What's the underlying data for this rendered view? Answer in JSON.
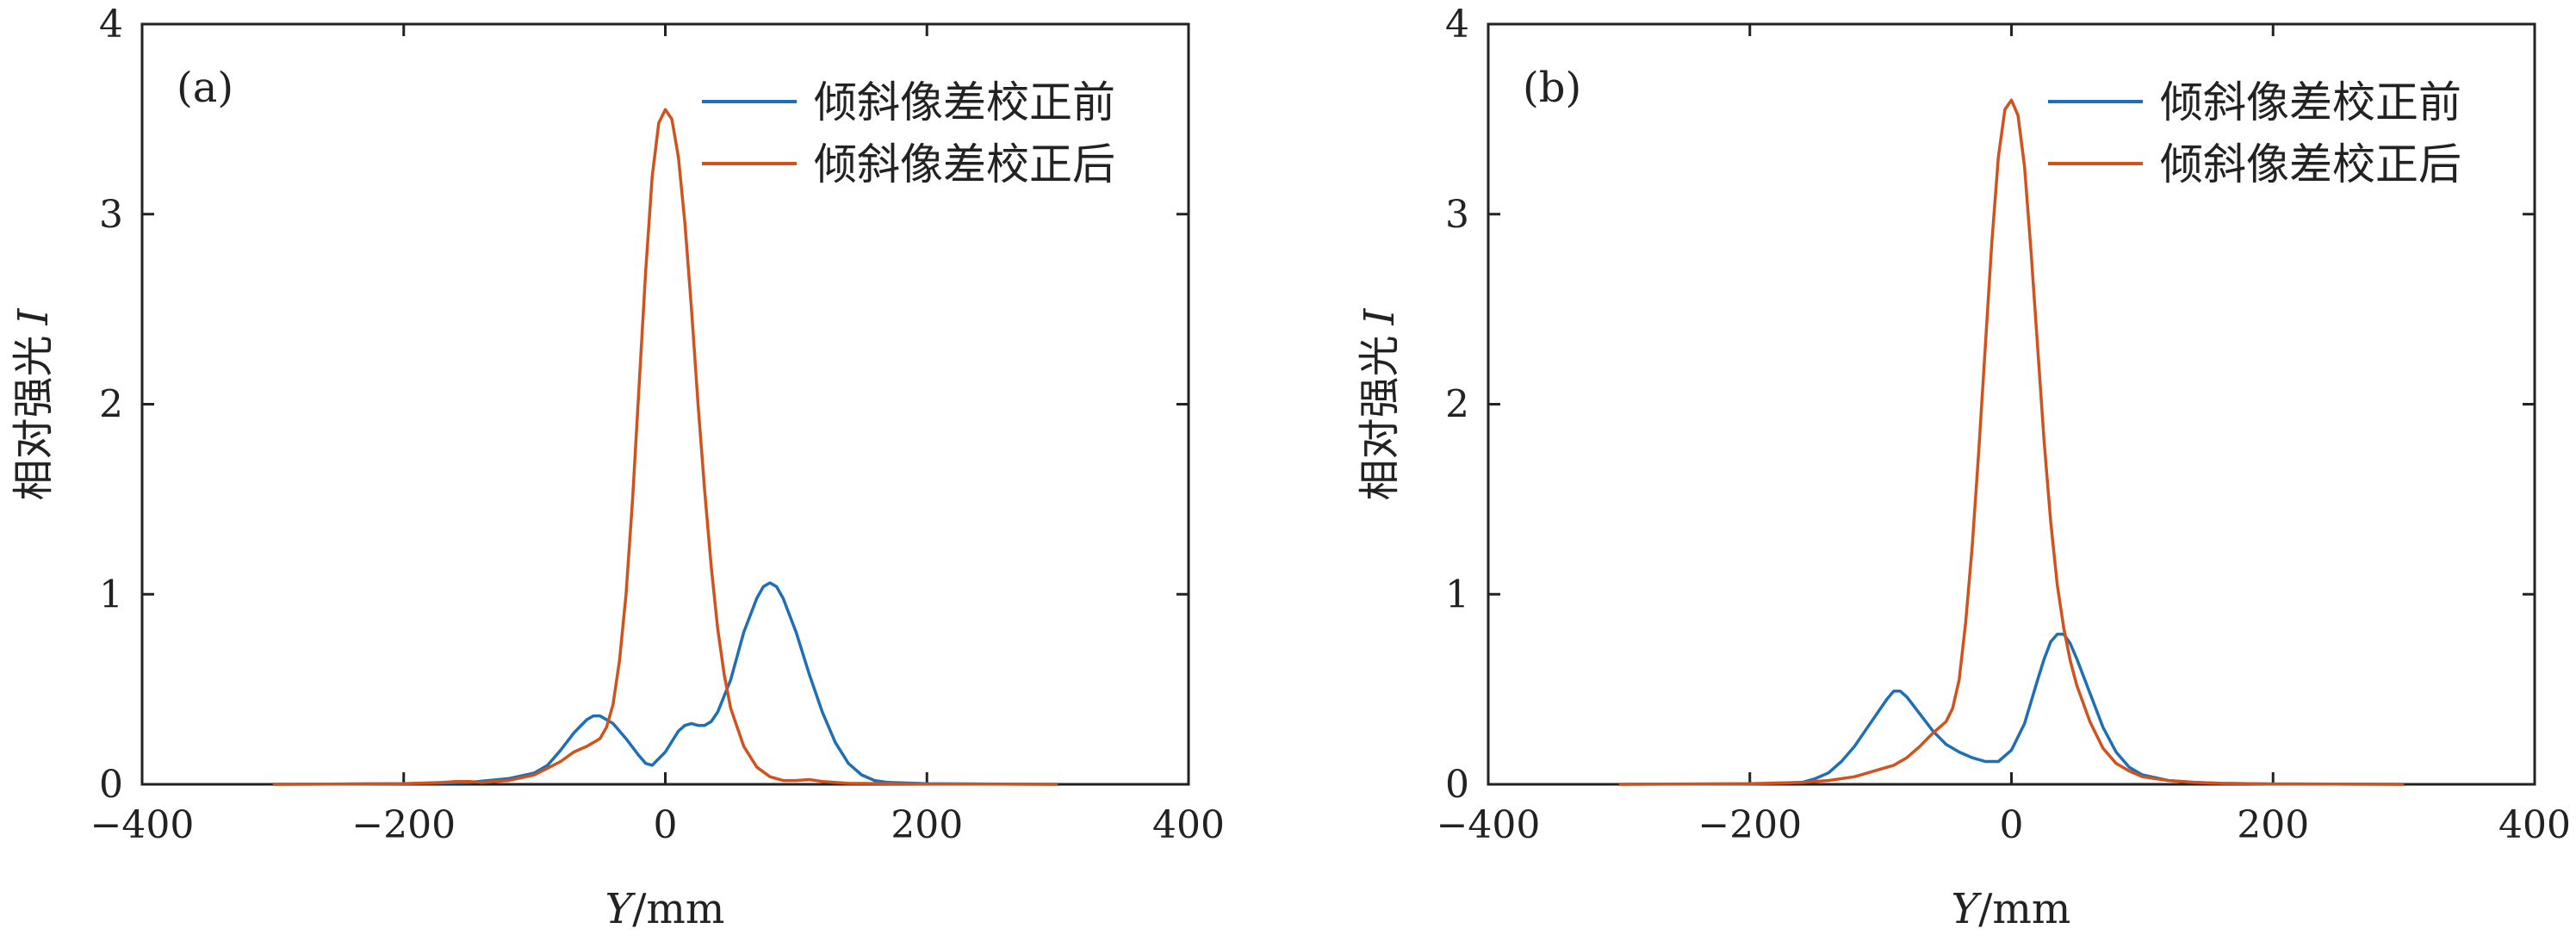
{
  "colors": {
    "before": "#1f6fb5",
    "after": "#d0531e",
    "axis": "#222222"
  },
  "chart_data": [
    {
      "type": "line",
      "panel_label": "(a)",
      "xlabel_var": "Y",
      "xlabel_unit": "/mm",
      "ylabel_text": "相对强光",
      "ylabel_var": "I",
      "xlim": [
        -400,
        400
      ],
      "ylim": [
        0,
        4
      ],
      "xticks": [
        -400,
        -200,
        0,
        200,
        400
      ],
      "xtick_labels": [
        "−400",
        "−200",
        "0",
        "200",
        "400"
      ],
      "yticks": [
        0,
        1,
        2,
        3,
        4
      ],
      "ytick_labels": [
        "0",
        "1",
        "2",
        "3",
        "4"
      ],
      "legend_position": "top-right",
      "series": [
        {
          "name": "倾斜像差校正前",
          "color_key": "before",
          "x": [
            -300,
            -200,
            -150,
            -120,
            -100,
            -90,
            -80,
            -70,
            -60,
            -55,
            -50,
            -40,
            -30,
            -20,
            -15,
            -10,
            0,
            10,
            15,
            20,
            25,
            30,
            35,
            40,
            50,
            60,
            70,
            75,
            80,
            85,
            90,
            100,
            110,
            120,
            130,
            140,
            150,
            160,
            170,
            200,
            300
          ],
          "y": [
            0,
            0.003,
            0.01,
            0.03,
            0.06,
            0.1,
            0.18,
            0.27,
            0.34,
            0.36,
            0.36,
            0.32,
            0.24,
            0.15,
            0.11,
            0.1,
            0.17,
            0.28,
            0.31,
            0.32,
            0.31,
            0.31,
            0.33,
            0.38,
            0.55,
            0.8,
            0.98,
            1.04,
            1.06,
            1.04,
            0.98,
            0.8,
            0.58,
            0.38,
            0.22,
            0.11,
            0.05,
            0.02,
            0.01,
            0.003,
            0
          ]
        },
        {
          "name": "倾斜像差校正后",
          "color_key": "after",
          "x": [
            -300,
            -200,
            -170,
            -160,
            -150,
            -140,
            -120,
            -100,
            -80,
            -70,
            -60,
            -50,
            -45,
            -40,
            -35,
            -30,
            -25,
            -20,
            -15,
            -10,
            -5,
            0,
            5,
            10,
            15,
            20,
            25,
            30,
            35,
            40,
            45,
            50,
            60,
            70,
            80,
            90,
            100,
            110,
            120,
            140,
            200,
            300
          ],
          "y": [
            0,
            0.003,
            0.01,
            0.015,
            0.015,
            0.01,
            0.02,
            0.05,
            0.12,
            0.17,
            0.2,
            0.24,
            0.3,
            0.42,
            0.65,
            1.0,
            1.5,
            2.1,
            2.7,
            3.2,
            3.48,
            3.55,
            3.5,
            3.3,
            2.95,
            2.5,
            2.0,
            1.55,
            1.15,
            0.82,
            0.58,
            0.4,
            0.2,
            0.09,
            0.04,
            0.02,
            0.02,
            0.025,
            0.015,
            0.005,
            0.002,
            0
          ]
        }
      ]
    },
    {
      "type": "line",
      "panel_label": "(b)",
      "xlabel_var": "Y",
      "xlabel_unit": "/mm",
      "ylabel_text": "相对强光",
      "ylabel_var": "I",
      "xlim": [
        -400,
        400
      ],
      "ylim": [
        0,
        4
      ],
      "xticks": [
        -400,
        -200,
        0,
        200,
        400
      ],
      "xtick_labels": [
        "−400",
        "−200",
        "0",
        "200",
        "400"
      ],
      "yticks": [
        0,
        1,
        2,
        3,
        4
      ],
      "ytick_labels": [
        "0",
        "1",
        "2",
        "3",
        "4"
      ],
      "legend_position": "top-right",
      "series": [
        {
          "name": "倾斜像差校正前",
          "color_key": "before",
          "x": [
            -300,
            -200,
            -180,
            -160,
            -150,
            -140,
            -130,
            -120,
            -110,
            -100,
            -95,
            -90,
            -85,
            -80,
            -70,
            -60,
            -50,
            -40,
            -30,
            -20,
            -10,
            0,
            10,
            20,
            25,
            30,
            35,
            40,
            45,
            50,
            60,
            70,
            80,
            90,
            100,
            120,
            140,
            160,
            200,
            300
          ],
          "y": [
            0,
            0.002,
            0.005,
            0.01,
            0.03,
            0.06,
            0.12,
            0.2,
            0.3,
            0.4,
            0.45,
            0.49,
            0.49,
            0.46,
            0.37,
            0.28,
            0.21,
            0.17,
            0.14,
            0.12,
            0.12,
            0.18,
            0.32,
            0.55,
            0.66,
            0.75,
            0.79,
            0.79,
            0.74,
            0.66,
            0.48,
            0.3,
            0.17,
            0.09,
            0.05,
            0.02,
            0.01,
            0.005,
            0.002,
            0
          ]
        },
        {
          "name": "倾斜像差校正后",
          "color_key": "after",
          "x": [
            -300,
            -200,
            -160,
            -140,
            -120,
            -110,
            -100,
            -90,
            -80,
            -70,
            -60,
            -50,
            -45,
            -40,
            -35,
            -30,
            -25,
            -20,
            -15,
            -10,
            -5,
            0,
            5,
            10,
            15,
            20,
            25,
            30,
            35,
            40,
            45,
            50,
            60,
            70,
            80,
            90,
            100,
            120,
            140,
            160,
            200,
            300
          ],
          "y": [
            0,
            0.003,
            0.01,
            0.02,
            0.04,
            0.06,
            0.08,
            0.1,
            0.14,
            0.2,
            0.27,
            0.33,
            0.4,
            0.55,
            0.85,
            1.25,
            1.75,
            2.3,
            2.85,
            3.3,
            3.55,
            3.6,
            3.52,
            3.25,
            2.8,
            2.3,
            1.8,
            1.38,
            1.05,
            0.82,
            0.65,
            0.52,
            0.33,
            0.19,
            0.11,
            0.07,
            0.04,
            0.02,
            0.01,
            0.005,
            0.002,
            0
          ]
        }
      ]
    }
  ]
}
